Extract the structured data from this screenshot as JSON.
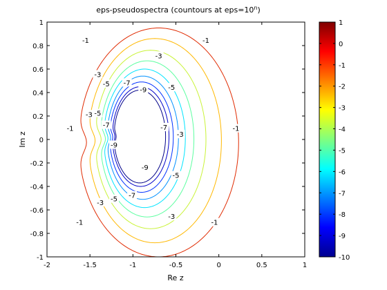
{
  "chart_data": {
    "type": "contour",
    "title": "eps-pseudospectra (countours at eps=10",
    "title_superscript": "n",
    "title_close": ")",
    "xlabel": "Re z",
    "ylabel": "Im z",
    "xlim": [
      -2,
      1
    ],
    "ylim": [
      -1,
      1
    ],
    "xticks": [
      -2,
      -1.5,
      -1,
      -0.5,
      0,
      0.5,
      1
    ],
    "xtick_labels": [
      "-2",
      "-1.5",
      "-1",
      "-0.5",
      "0",
      "0.5",
      "1"
    ],
    "yticks": [
      -1,
      -0.8,
      -0.6,
      -0.4,
      -0.2,
      0,
      0.2,
      0.4,
      0.6,
      0.8,
      1
    ],
    "ytick_labels": [
      "-1",
      "-0.8",
      "-0.6",
      "-0.4",
      "-0.2",
      "0",
      "0.2",
      "0.4",
      "0.6",
      "0.8",
      "1"
    ],
    "grid": false,
    "colorbar": {
      "range": [
        -10,
        1
      ],
      "ticks": [
        1,
        0,
        -1,
        -2,
        -3,
        -4,
        -5,
        -6,
        -7,
        -8,
        -9,
        -10
      ],
      "tick_labels": [
        "1",
        "0",
        "-1",
        "-2",
        "-3",
        "-4",
        "-5",
        "-6",
        "-7",
        "-8",
        "-9",
        "-10"
      ],
      "colormap": "jet",
      "placement": "right"
    },
    "contour_levels": [
      -1,
      -2,
      -3,
      -4,
      -5,
      -6,
      -7,
      -8,
      -9
    ],
    "contours": [
      {
        "level": -1,
        "color": "#e02a00",
        "left": -1.63,
        "right": 0.23,
        "top": 0.95,
        "bottom": -1.0,
        "notch_x": -1.47,
        "notch_w": 0.09
      },
      {
        "level": -2,
        "color": "#ffb800",
        "left": -1.52,
        "right": 0.03,
        "top": 0.86,
        "bottom": -0.88,
        "notch_x": -1.39,
        "notch_w": 0.08
      },
      {
        "level": -3,
        "color": "#c9f336",
        "left": -1.44,
        "right": -0.15,
        "top": 0.76,
        "bottom": -0.76,
        "notch_x": -1.32,
        "notch_w": 0.07
      },
      {
        "level": -4,
        "color": "#5cffa0",
        "left": -1.38,
        "right": -0.29,
        "top": 0.67,
        "bottom": -0.66,
        "notch_x": -1.27,
        "notch_w": 0.06
      },
      {
        "level": -5,
        "color": "#00e4ff",
        "left": -1.34,
        "right": -0.39,
        "top": 0.6,
        "bottom": -0.58,
        "notch_x": -1.24,
        "notch_w": 0.05
      },
      {
        "level": -6,
        "color": "#0090ff",
        "left": -1.3,
        "right": -0.47,
        "top": 0.54,
        "bottom": -0.51,
        "notch_x": -1.21,
        "notch_w": 0.04
      },
      {
        "level": -7,
        "color": "#0030ff",
        "left": -1.27,
        "right": -0.53,
        "top": 0.49,
        "bottom": -0.45,
        "notch_x": -1.19,
        "notch_w": 0.035
      },
      {
        "level": -8,
        "color": "#0000c8",
        "left": -1.24,
        "right": -0.58,
        "top": 0.45,
        "bottom": -0.4,
        "notch_x": -1.18,
        "notch_w": 0.03
      },
      {
        "level": -9,
        "color": "#000088",
        "left": -1.22,
        "right": -0.62,
        "top": 0.42,
        "bottom": -0.37,
        "notch_x": -1.17,
        "notch_w": 0.025
      }
    ],
    "contour_labels": [
      {
        "text": "-1",
        "x": -1.55,
        "y": 0.84
      },
      {
        "text": "-1",
        "x": -0.15,
        "y": 0.84
      },
      {
        "text": "-1",
        "x": -1.73,
        "y": 0.09
      },
      {
        "text": "-1",
        "x": 0.2,
        "y": 0.09
      },
      {
        "text": "-1",
        "x": -1.62,
        "y": -0.71
      },
      {
        "text": "-1",
        "x": -0.05,
        "y": -0.71
      },
      {
        "text": "-3",
        "x": -0.7,
        "y": 0.71
      },
      {
        "text": "-3",
        "x": -1.41,
        "y": 0.55
      },
      {
        "text": "-3",
        "x": -1.51,
        "y": 0.21
      },
      {
        "text": "-3",
        "x": -0.45,
        "y": 0.04
      },
      {
        "text": "-3",
        "x": -1.38,
        "y": -0.54
      },
      {
        "text": "-3",
        "x": -0.55,
        "y": -0.66
      },
      {
        "text": "-5",
        "x": -1.31,
        "y": 0.47
      },
      {
        "text": "-5",
        "x": -0.55,
        "y": 0.44
      },
      {
        "text": "-5",
        "x": -1.41,
        "y": 0.22
      },
      {
        "text": "-5",
        "x": -0.5,
        "y": -0.31
      },
      {
        "text": "-5",
        "x": -1.22,
        "y": -0.51
      },
      {
        "text": "-7",
        "x": -1.07,
        "y": 0.48
      },
      {
        "text": "-7",
        "x": -1.31,
        "y": 0.12
      },
      {
        "text": "-7",
        "x": -0.64,
        "y": 0.1
      },
      {
        "text": "-7",
        "x": -1.01,
        "y": -0.48
      },
      {
        "text": "-9",
        "x": -0.88,
        "y": 0.42
      },
      {
        "text": "-9",
        "x": -1.22,
        "y": -0.05
      },
      {
        "text": "-9",
        "x": -0.86,
        "y": -0.24
      }
    ]
  }
}
